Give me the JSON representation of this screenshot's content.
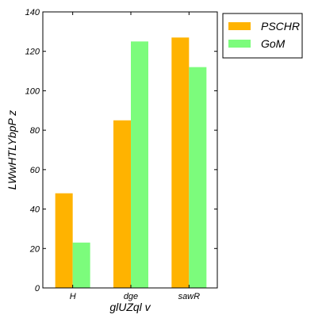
{
  "chart_data": {
    "type": "bar",
    "categories": [
      "H",
      "dge",
      "sawR"
    ],
    "series": [
      {
        "name": "PSCHR",
        "values": [
          48,
          85,
          127
        ],
        "color": "#ffb300"
      },
      {
        "name": "GoM",
        "values": [
          23,
          125,
          112
        ],
        "color": "#7cfc7c"
      }
    ],
    "xlabel": "glUZql v",
    "ylabel": "LWwHTLYbpP z",
    "ylim": [
      0,
      140
    ],
    "yticks": [
      0,
      20,
      40,
      60,
      80,
      100,
      120,
      140
    ],
    "grid": false,
    "legend_position": "outside-top-right"
  }
}
